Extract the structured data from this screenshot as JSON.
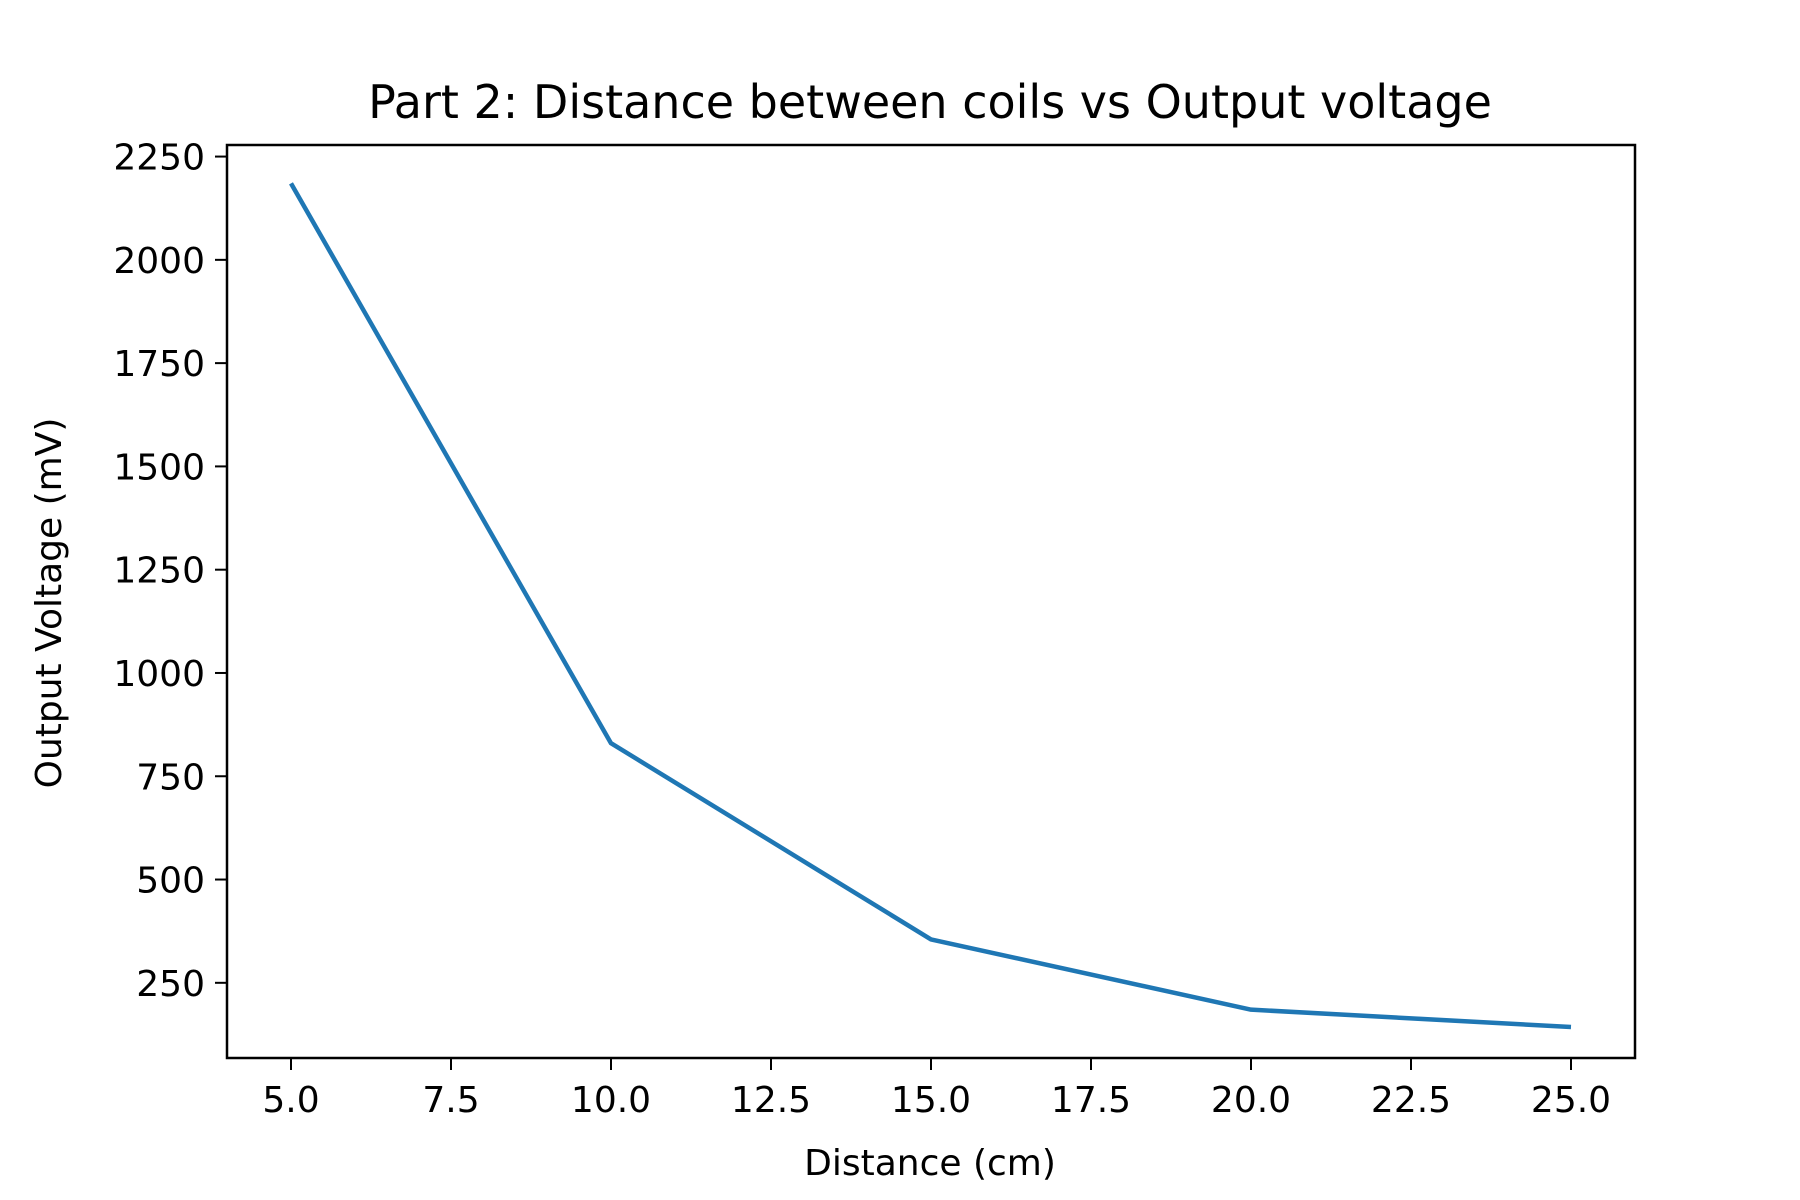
{
  "chart_data": {
    "type": "line",
    "title": "Part 2: Distance between coils vs Output voltage",
    "xlabel": "Distance (cm)",
    "ylabel": "Output Voltage (mV)",
    "xlim": [
      4.0,
      26.0
    ],
    "ylim": [
      68,
      2278
    ],
    "xticks": [
      5.0,
      7.5,
      10.0,
      12.5,
      15.0,
      17.5,
      20.0,
      22.5,
      25.0
    ],
    "xtick_labels": [
      "5.0",
      "7.5",
      "10.0",
      "12.5",
      "15.0",
      "17.5",
      "20.0",
      "22.5",
      "25.0"
    ],
    "yticks": [
      250,
      500,
      750,
      1000,
      1250,
      1500,
      1750,
      2000,
      2250
    ],
    "ytick_labels": [
      "250",
      "500",
      "750",
      "1000",
      "1250",
      "1500",
      "1750",
      "2000",
      "2250"
    ],
    "grid": false,
    "legend": "none",
    "series": [
      {
        "color": "#1f77b4",
        "x": [
          5,
          10,
          15,
          20,
          25
        ],
        "y": [
          2185,
          830,
          355,
          185,
          143
        ]
      }
    ]
  }
}
